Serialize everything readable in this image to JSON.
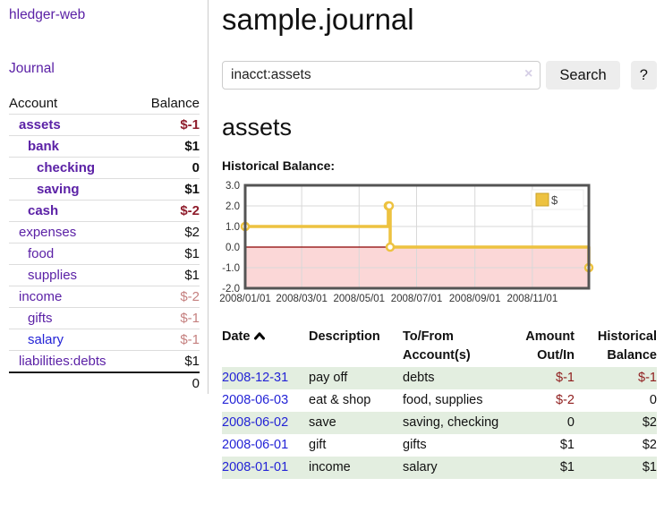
{
  "app": {
    "brand": "hledger-web",
    "nav_journal": "Journal"
  },
  "sidebar": {
    "accounts_table": {
      "headers": [
        "Account",
        "Balance"
      ],
      "rows": [
        {
          "account": "assets",
          "balance": "$-1",
          "indent": 0,
          "bold": true,
          "balance_style": "negative-strong"
        },
        {
          "account": "bank",
          "balance": "$1",
          "indent": 1,
          "bold": true,
          "balance_style": "normal"
        },
        {
          "account": "checking",
          "balance": "0",
          "indent": 2,
          "bold": true,
          "balance_style": "normal"
        },
        {
          "account": "saving",
          "balance": "$1",
          "indent": 2,
          "bold": true,
          "balance_style": "normal"
        },
        {
          "account": "cash",
          "balance": "$-2",
          "indent": 1,
          "bold": true,
          "balance_style": "negative-strong"
        },
        {
          "account": "expenses",
          "balance": "$2",
          "indent": 0,
          "bold": false,
          "balance_style": "normal"
        },
        {
          "account": "food",
          "balance": "$1",
          "indent": 1,
          "bold": false,
          "balance_style": "normal"
        },
        {
          "account": "supplies",
          "balance": "$1",
          "indent": 1,
          "bold": false,
          "balance_style": "normal"
        },
        {
          "account": "income",
          "balance": "$-2",
          "indent": 0,
          "bold": false,
          "balance_style": "negative-muted"
        },
        {
          "account": "gifts",
          "balance": "$-1",
          "indent": 1,
          "bold": false,
          "balance_style": "negative-muted"
        },
        {
          "account": "salary",
          "balance": "$-1",
          "indent": 1,
          "bold": false,
          "balance_style": "negative-muted",
          "link_color": "blue"
        },
        {
          "account": "liabilities:debts",
          "balance": "$1",
          "indent": 0,
          "bold": false,
          "balance_style": "normal"
        }
      ],
      "total": "0"
    }
  },
  "header": {
    "title": "sample.journal"
  },
  "search": {
    "value": "inacct:assets",
    "clear_icon": "×",
    "button_label": "Search",
    "help_label": "?"
  },
  "account_page": {
    "heading": "assets",
    "chart_label": "Historical Balance:"
  },
  "chart_data": {
    "type": "line",
    "step": true,
    "title": "Historical Balance",
    "xlim": [
      "2008-01-01",
      "2008-12-31"
    ],
    "ylim": [
      -2.0,
      3.0
    ],
    "x_ticks": [
      "2008/01/01",
      "2008/03/01",
      "2008/05/01",
      "2008/07/01",
      "2008/09/01",
      "2008/11/01"
    ],
    "y_ticks": [
      3.0,
      2.0,
      1.0,
      0.0,
      -1.0,
      -2.0
    ],
    "grid": true,
    "legend_position": "top-right",
    "series": [
      {
        "name": "$",
        "color": "#edc240",
        "points": [
          [
            "2008-01-01",
            1.0
          ],
          [
            "2008-06-01",
            2.0
          ],
          [
            "2008-06-02",
            2.0
          ],
          [
            "2008-06-03",
            0.0
          ],
          [
            "2008-12-31",
            -1.0
          ]
        ]
      }
    ],
    "negative_region_fill": "#fbd7d7",
    "zero_line_color": "#8b0000",
    "grid_color": "#d8d8d8",
    "border_color": "#545454"
  },
  "register_table": {
    "headers": {
      "date": "Date",
      "description": "Description",
      "tofrom": "To/From Account(s)",
      "amount": "Amount Out/In",
      "balance": "Historical Balance"
    },
    "sort": "ascending",
    "rows": [
      {
        "date": "2008-12-31",
        "description": "pay off",
        "accounts": "debts",
        "amount": "$-1",
        "amount_negative": true,
        "balance": "$-1",
        "balance_negative": true,
        "shaded": true
      },
      {
        "date": "2008-06-03",
        "description": "eat & shop",
        "accounts": "food, supplies",
        "amount": "$-2",
        "amount_negative": true,
        "balance": "0",
        "balance_negative": false,
        "shaded": false
      },
      {
        "date": "2008-06-02",
        "description": "save",
        "accounts": "saving, checking",
        "amount": "0",
        "amount_negative": false,
        "balance": "$2",
        "balance_negative": false,
        "shaded": true
      },
      {
        "date": "2008-06-01",
        "description": "gift",
        "accounts": "gifts",
        "amount": "$1",
        "amount_negative": false,
        "balance": "$2",
        "balance_negative": false,
        "shaded": false
      },
      {
        "date": "2008-01-01",
        "description": "income",
        "accounts": "salary",
        "amount": "$1",
        "amount_negative": false,
        "balance": "$1",
        "balance_negative": false,
        "shaded": true
      }
    ]
  },
  "colors": {
    "link_purple": "#5b21a6",
    "link_blue": "#2323d6",
    "negative_strong": "#8f1d2c",
    "negative_muted": "#c5807f",
    "row_shade_green": "#e3eee0",
    "chart_series_gold": "#edc240",
    "chart_negative_fill": "#fbd7d7",
    "chart_zero_line": "#8b0000"
  }
}
